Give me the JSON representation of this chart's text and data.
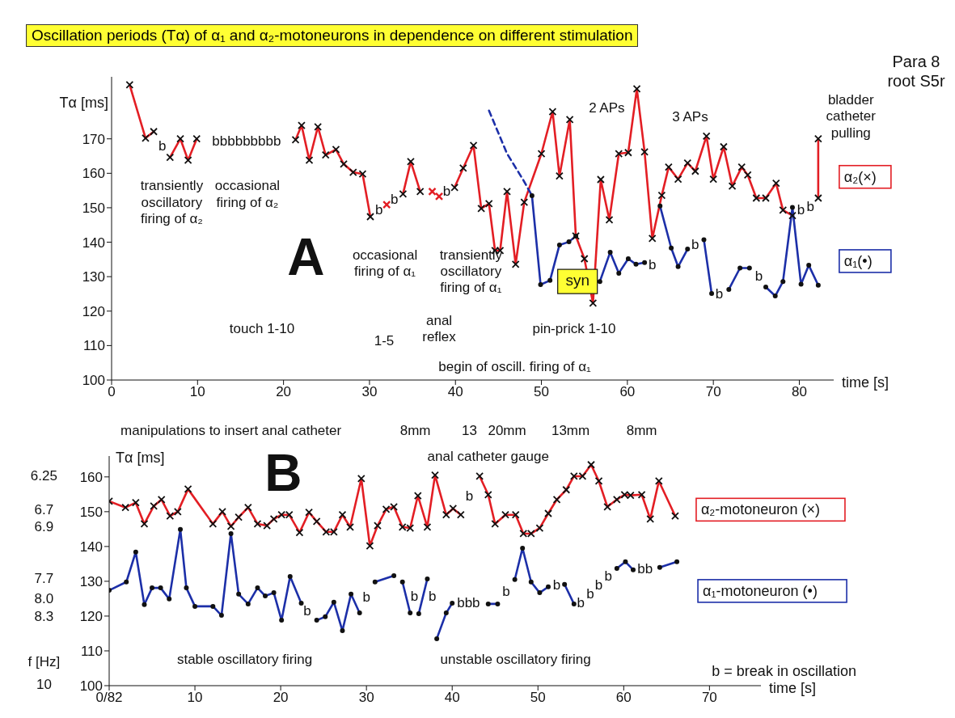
{
  "chart_data": [
    {
      "type": "line",
      "title": "Oscillation periods (Tα) of α₁ and α₂-motoneurons in dependence on different stimulation",
      "xlabel": "time [s]",
      "ylabel": "Tα [ms]",
      "xlim": [
        0,
        84
      ],
      "xticks": [
        0,
        10,
        20,
        30,
        40,
        50,
        60,
        70,
        80
      ],
      "ylim": [
        100,
        188
      ],
      "yticks": [
        100,
        110,
        120,
        130,
        140,
        150,
        160,
        170
      ],
      "grid": false,
      "legend": "right",
      "series": [
        {
          "name": "α₂(×)",
          "color": "#e31e24",
          "marker": "cross",
          "x": [
            2.1,
            3.95,
            4.9,
            5.9,
            6.8,
            8.0,
            8.9,
            9.9,
            15.7,
            21.4,
            22.1,
            23.0,
            24.0,
            24.9,
            26.1,
            27.0,
            28.1,
            29.2,
            30.1,
            31.1,
            32.0,
            32.9,
            33.9,
            34.8,
            35.9,
            36.6,
            37.3,
            37.7,
            38.1,
            39.0,
            39.9,
            40.9,
            42.1,
            43.0,
            43.9,
            44.6,
            45.2,
            46.0,
            47.0,
            48.0,
            50.0,
            51.3,
            52.1,
            53.3,
            54.0,
            55.0,
            56.0,
            56.9,
            57.9,
            59.0,
            60.1,
            61.1,
            62.0,
            62.9,
            64.0,
            64.8,
            65.9,
            67.0,
            67.9,
            69.2,
            70.0,
            71.2,
            72.2,
            73.3,
            74.0,
            75.0,
            76.1,
            77.3,
            78.1,
            79.2,
            80.7,
            82.2,
            82.2
          ],
          "values": [
            185.7,
            170.2,
            172.1,
            null,
            164.6,
            170,
            163.8,
            170,
            null,
            169.7,
            173.9,
            163.8,
            173.5,
            165.3,
            166.9,
            162.7,
            160.3,
            159.8,
            147.4,
            null,
            150.9,
            null,
            154,
            163.4,
            154.7,
            null,
            154.7,
            null,
            153.3,
            null,
            155.9,
            161.5,
            168.1,
            149.8,
            151.2,
            137.6,
            137.6,
            154.7,
            133.6,
            151.6,
            165.7,
            177.9,
            159.2,
            175.6,
            141.8,
            135.2,
            122.3,
            158.2,
            146.5,
            165.7,
            166,
            184.5,
            166.2,
            141.1,
            153.6,
            161.8,
            158.3,
            163,
            160.6,
            170.8,
            158.3,
            167.7,
            156.3,
            161.8,
            159.5,
            152.8,
            152.8,
            157.1,
            149.3,
            147.7,
            null,
            152.8,
            170
          ]
        },
        {
          "name": "α₁(•)",
          "color": "#1c2fa8",
          "marker": "circle",
          "x": [
            48.9,
            49.9,
            51.0,
            52.1,
            53.2,
            54.0,
            55.4,
            56.8,
            58.0,
            59.0,
            60.1,
            61.0,
            62.0,
            62.9,
            63.8,
            65.1,
            65.9,
            67.0,
            67.9,
            68.9,
            69.8,
            70.7,
            71.8,
            73.1,
            74.2,
            75.3,
            76.1,
            77.2,
            78.1,
            79.2,
            80.2,
            81.1,
            82.2
          ],
          "values": [
            153.5,
            127.7,
            128.9,
            139.2,
            140.1,
            141.8,
            null,
            128.6,
            137.1,
            131,
            135.2,
            133.6,
            134.1,
            null,
            150.5,
            138.3,
            132.9,
            138,
            null,
            140.7,
            125.1,
            null,
            126.3,
            132.5,
            132.5,
            null,
            127,
            124.4,
            128.6,
            150.1,
            127.8,
            133.3,
            127.5
          ]
        },
        {
          "color": "#1c2fa8",
          "marker": "none",
          "line_style": "dashed",
          "x": [
            43.9,
            46.0,
            47.9,
            48.9
          ],
          "values": [
            178.2,
            165.7,
            158,
            153.5
          ]
        }
      ],
      "annotations": [
        "A",
        "Para 8\nroot S5r",
        "transiently\noscillatory\nfiring of α₂",
        "occasional\nfiring of α₂",
        "b",
        "bbbbbbbbb",
        "b",
        "b",
        "b",
        "occasional\nfiring of α₁",
        "transiently\noscillatory\nfiring of α₁",
        "touch 1-10",
        "1-5",
        "anal\nreflex",
        "pin-prick 1-10",
        "begin of oscill. firing of α₁",
        "2 APs",
        "3 APs",
        "b",
        "b",
        "b",
        "b",
        "b",
        "b",
        "bladder\ncatheter\npulling",
        "syn"
      ]
    },
    {
      "type": "line",
      "xlabel": "time [s]",
      "ylabel": "Tα [ms]",
      "xlim": [
        0,
        76
      ],
      "xticks": [
        {
          "value": 0,
          "label": "0/82"
        },
        10,
        20,
        30,
        40,
        50,
        60,
        70
      ],
      "ylim": [
        100,
        166
      ],
      "yticks": [
        100,
        110,
        120,
        130,
        140,
        150,
        160
      ],
      "grid": false,
      "legend": "right",
      "series": [
        {
          "name": "α₂-motoneuron (×)",
          "color": "#e31e24",
          "marker": "cross",
          "x": [
            0,
            1.9,
            3.1,
            4.1,
            5.2,
            6.1,
            7.1,
            8.0,
            9.2,
            12.1,
            13.2,
            14.2,
            15.1,
            16.2,
            17.3,
            18.4,
            19.2,
            20.1,
            21.0,
            22.2,
            23.3,
            24.2,
            25.3,
            26.2,
            27.2,
            28.1,
            29.4,
            30.4,
            31.3,
            32.3,
            33.2,
            34.2,
            35.1,
            36.0,
            37.1,
            38.0,
            39.3,
            40.1,
            41.0,
            42.0,
            43.2,
            44.2,
            45.0,
            46.2,
            47.4,
            48.3,
            49.2,
            50.2,
            51.2,
            52.2,
            53.3,
            54.2,
            55.2,
            56.2,
            57.1,
            58.1,
            59.2,
            60.1,
            60.8,
            62.1,
            63.1,
            64.1,
            66.0
          ],
          "values": [
            153,
            151.2,
            152.6,
            146.5,
            151.6,
            153.5,
            148.8,
            150,
            156.5,
            146.5,
            150,
            145.8,
            148.4,
            151.2,
            146.5,
            146,
            147.9,
            149.1,
            149.1,
            144,
            149.8,
            147.2,
            144.2,
            144.2,
            149.1,
            145.6,
            159.5,
            140.2,
            146,
            150.7,
            151.4,
            145.6,
            145.3,
            154.6,
            145.6,
            160.5,
            149.1,
            150.9,
            149.1,
            null,
            160.2,
            154.9,
            146.5,
            149.1,
            149.1,
            143.7,
            143.7,
            145.3,
            149.5,
            153.5,
            156.3,
            160.2,
            160.2,
            163.5,
            158.8,
            151.4,
            153.5,
            154.9,
            154.7,
            154.9,
            147.9,
            158.8,
            148.8
          ]
        },
        {
          "name": "α₁-motoneuron (•)",
          "color": "#1c2fa8",
          "marker": "circle",
          "x": [
            0,
            2.0,
            3.1,
            4.1,
            5.0,
            6.0,
            7.0,
            8.3,
            9.0,
            10.0,
            12.1,
            13.1,
            14.2,
            15.1,
            16.2,
            17.3,
            18.2,
            19.2,
            20.1,
            21.1,
            22.4,
            23.1,
            24.2,
            25.2,
            26.2,
            27.2,
            28.2,
            29.2,
            30.0,
            31.0,
            33.2,
            33.7,
            34.2,
            35.1,
            35.6,
            36.1,
            37.1,
            37.7,
            38.2,
            39.3,
            40.0,
            41.9,
            44.2,
            45.3,
            46.3,
            47.3,
            48.2,
            49.2,
            50.2,
            51.2,
            52.2,
            53.1,
            54.2,
            56.6,
            59.2,
            60.2,
            61.1,
            62.5,
            64.2,
            66.2
          ],
          "values": [
            127.4,
            129.8,
            138.4,
            123.3,
            128.1,
            128.1,
            124.9,
            144.9,
            128.1,
            122.8,
            122.8,
            120.2,
            143.7,
            126.3,
            123.5,
            128.1,
            125.8,
            126.7,
            118.8,
            131.4,
            123.7,
            null,
            118.8,
            119.8,
            124,
            115.8,
            126.3,
            120.9,
            null,
            129.8,
            131.6,
            null,
            129.8,
            120.9,
            null,
            120.7,
            130.7,
            null,
            113.5,
            120.9,
            123.7,
            null,
            123.5,
            123.5,
            null,
            130.5,
            139.5,
            129.8,
            126.7,
            128.4,
            null,
            129.1,
            123.5,
            null,
            133.7,
            135.6,
            133.3,
            null,
            134,
            135.6
          ]
        }
      ],
      "annotations": [
        "B",
        "b =  break in oscillation",
        "manipulations to insert anal catheter",
        "8mm",
        "13",
        "20mm",
        "13mm",
        "8mm",
        "anal catheter gauge",
        "stable oscillatory firing",
        "unstable oscillatory firing",
        "b",
        "b",
        "b",
        "b",
        "bbb",
        "b",
        "b",
        "b",
        "b",
        "b",
        "b",
        "bb",
        "b",
        "6.25",
        "6.7",
        "6.9",
        "7.7",
        "8.0",
        "8.3",
        "10",
        "f [Hz]"
      ]
    }
  ]
}
